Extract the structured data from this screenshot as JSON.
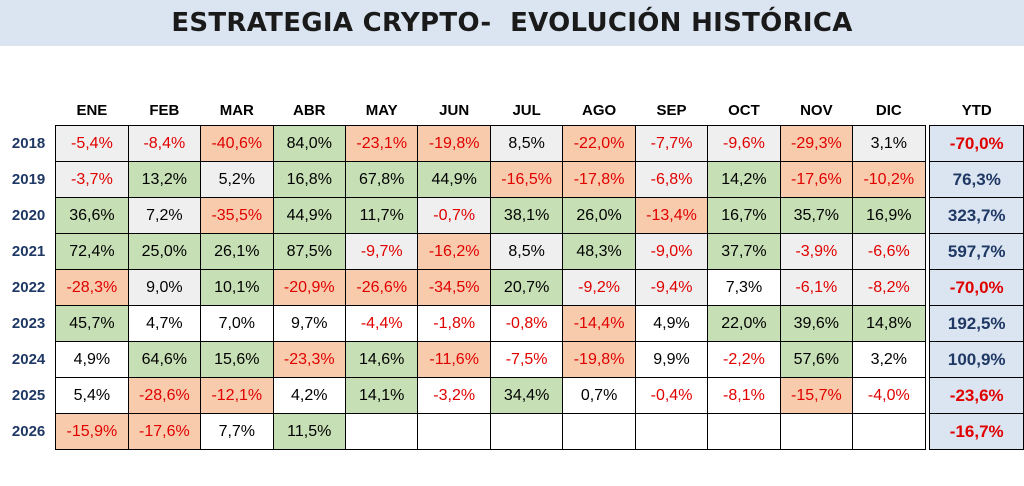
{
  "title": "ESTRATEGIA CRYPTO-  EVOLUCIÓN HISTÓRICA",
  "colors": {
    "header_band": "#dbe5f1",
    "positive_fill": "#c6dfb4",
    "negative_fill": "#f8cbad",
    "light_fill": "#efefef",
    "negative_text": "#e00000",
    "ytd_positive_text": "#1f3864"
  },
  "chart_data": {
    "type": "table",
    "columns": [
      "ENE",
      "FEB",
      "MAR",
      "ABR",
      "MAY",
      "JUN",
      "JUL",
      "AGO",
      "SEP",
      "OCT",
      "NOV",
      "DIC"
    ],
    "ytd_label": "YTD",
    "rows": [
      {
        "year": "2018",
        "values": [
          "-5,4%",
          "-8,4%",
          "-40,6%",
          "84,0%",
          "-23,1%",
          "-19,8%",
          "8,5%",
          "-22,0%",
          "-7,7%",
          "-9,6%",
          "-29,3%",
          "3,1%"
        ],
        "fills": [
          "l",
          "l",
          "r",
          "g",
          "r",
          "r",
          "l",
          "r",
          "l",
          "l",
          "r",
          "l"
        ],
        "ytd": "-70,0%"
      },
      {
        "year": "2019",
        "values": [
          "-3,7%",
          "13,2%",
          "5,2%",
          "16,8%",
          "67,8%",
          "44,9%",
          "-16,5%",
          "-17,8%",
          "-6,8%",
          "14,2%",
          "-17,6%",
          "-10,2%"
        ],
        "fills": [
          "l",
          "g",
          "l",
          "g",
          "g",
          "g",
          "r",
          "r",
          "l",
          "g",
          "r",
          "r"
        ],
        "ytd": "76,3%"
      },
      {
        "year": "2020",
        "values": [
          "36,6%",
          "7,2%",
          "-35,5%",
          "44,9%",
          "11,7%",
          "-0,7%",
          "38,1%",
          "26,0%",
          "-13,4%",
          "16,7%",
          "35,7%",
          "16,9%"
        ],
        "fills": [
          "g",
          "l",
          "r",
          "g",
          "g",
          "l",
          "g",
          "g",
          "r",
          "g",
          "g",
          "g"
        ],
        "ytd": "323,7%"
      },
      {
        "year": "2021",
        "values": [
          "72,4%",
          "25,0%",
          "26,1%",
          "87,5%",
          "-9,7%",
          "-16,2%",
          "8,5%",
          "48,3%",
          "-9,0%",
          "37,7%",
          "-3,9%",
          "-6,6%"
        ],
        "fills": [
          "g",
          "g",
          "g",
          "g",
          "l",
          "r",
          "l",
          "g",
          "l",
          "g",
          "l",
          "l"
        ],
        "ytd": "597,7%"
      },
      {
        "year": "2022",
        "values": [
          "-28,3%",
          "9,0%",
          "10,1%",
          "-20,9%",
          "-26,6%",
          "-34,5%",
          "20,7%",
          "-9,2%",
          "-9,4%",
          "7,3%",
          "-6,1%",
          "-8,2%"
        ],
        "fills": [
          "r",
          "l",
          "g",
          "r",
          "r",
          "r",
          "g",
          "l",
          "l",
          "w",
          "l",
          "l"
        ],
        "ytd": "-70,0%"
      },
      {
        "year": "2023",
        "values": [
          "45,7%",
          "4,7%",
          "7,0%",
          "9,7%",
          "-4,4%",
          "-1,8%",
          "-0,8%",
          "-14,4%",
          "4,9%",
          "22,0%",
          "39,6%",
          "14,8%"
        ],
        "fills": [
          "g",
          "w",
          "w",
          "w",
          "w",
          "w",
          "w",
          "r",
          "w",
          "g",
          "g",
          "g"
        ],
        "ytd": "192,5%"
      },
      {
        "year": "2024",
        "values": [
          "4,9%",
          "64,6%",
          "15,6%",
          "-23,3%",
          "14,6%",
          "-11,6%",
          "-7,5%",
          "-19,8%",
          "9,9%",
          "-2,2%",
          "57,6%",
          "3,2%"
        ],
        "fills": [
          "w",
          "g",
          "g",
          "r",
          "g",
          "r",
          "w",
          "r",
          "w",
          "w",
          "g",
          "w"
        ],
        "ytd": "100,9%"
      },
      {
        "year": "2025",
        "values": [
          "5,4%",
          "-28,6%",
          "-12,1%",
          "4,2%",
          "14,1%",
          "-3,2%",
          "34,4%",
          "0,7%",
          "-0,4%",
          "-8,1%",
          "-15,7%",
          "-4,0%"
        ],
        "fills": [
          "w",
          "r",
          "r",
          "w",
          "g",
          "w",
          "g",
          "w",
          "w",
          "w",
          "r",
          "w"
        ],
        "ytd": "-23,6%"
      },
      {
        "year": "2026",
        "values": [
          "-15,9%",
          "-17,6%",
          "7,7%",
          "11,5%",
          "",
          "",
          "",
          "",
          "",
          "",
          "",
          ""
        ],
        "fills": [
          "r",
          "r",
          "w",
          "g",
          "e",
          "e",
          "e",
          "e",
          "e",
          "e",
          "e",
          "e"
        ],
        "ytd": "-16,7%"
      }
    ]
  }
}
